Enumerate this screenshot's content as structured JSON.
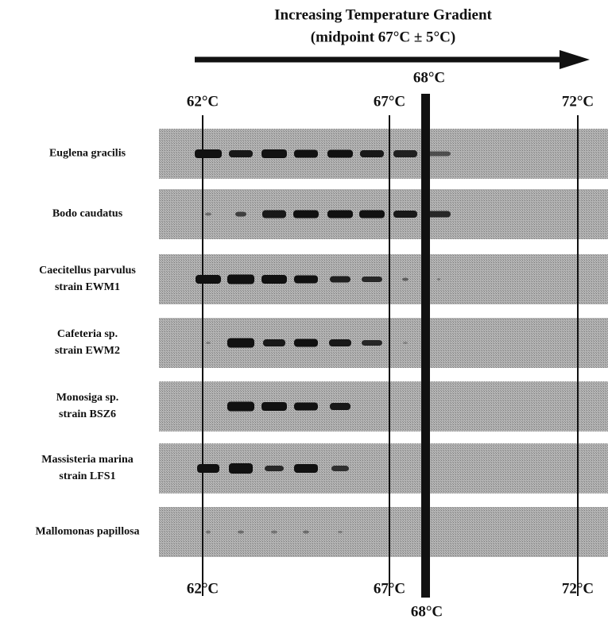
{
  "title": [
    "Increasing Temperature Gradient",
    "(midpoint 67°C ± 5°C)"
  ],
  "temperatures": {
    "top": [
      "62°C",
      "67°C",
      "72°C"
    ],
    "bottom": [
      "62°C",
      "67°C",
      "72°C"
    ],
    "marker_top": "68°C",
    "marker_bottom": "68°C"
  },
  "rows": [
    {
      "label": [
        "Euglena gracilis"
      ]
    },
    {
      "label": [
        "Bodo caudatus"
      ]
    },
    {
      "label": [
        "Caecitellus parvulus",
        "strain EWM1"
      ]
    },
    {
      "label": [
        "Cafeteria sp.",
        "strain EWM2"
      ]
    },
    {
      "label": [
        "Monosiga sp.",
        "strain BSZ6"
      ]
    },
    {
      "label": [
        "Massisteria marina",
        "strain LFS1"
      ]
    },
    {
      "label": [
        "Mallomonas papillosa"
      ]
    }
  ]
}
